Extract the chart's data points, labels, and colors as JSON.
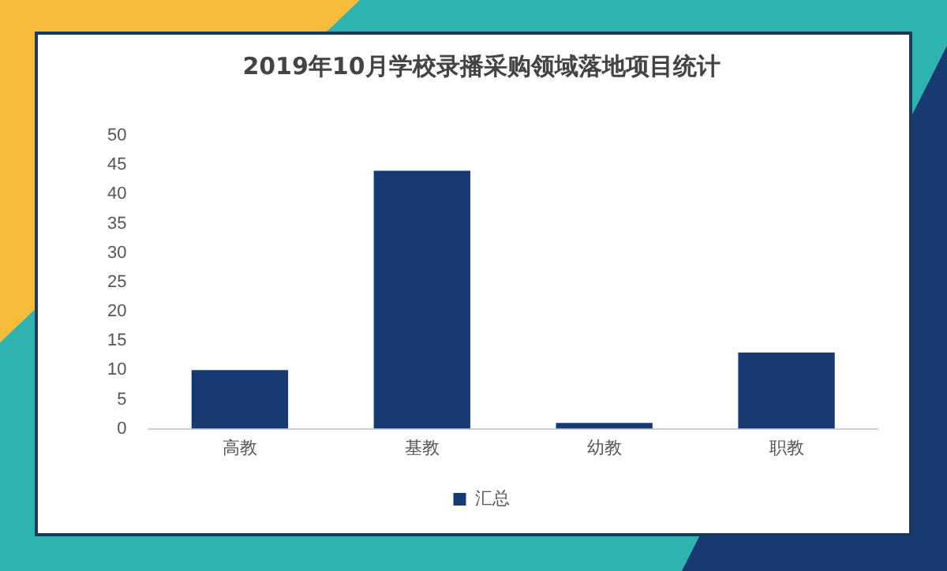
{
  "chart_data": {
    "type": "bar",
    "title": "2019年10月学校录播采购领域落地项目统计",
    "categories": [
      "高教",
      "基教",
      "幼教",
      "职教"
    ],
    "series": [
      {
        "name": "汇总",
        "color": "#183a72",
        "values": [
          10,
          44,
          1,
          13
        ]
      }
    ],
    "ylim": [
      0,
      50
    ],
    "yticks": [
      0,
      5,
      10,
      15,
      20,
      25,
      30,
      35,
      40,
      45,
      50
    ],
    "grid": false,
    "legend": "bottom"
  }
}
